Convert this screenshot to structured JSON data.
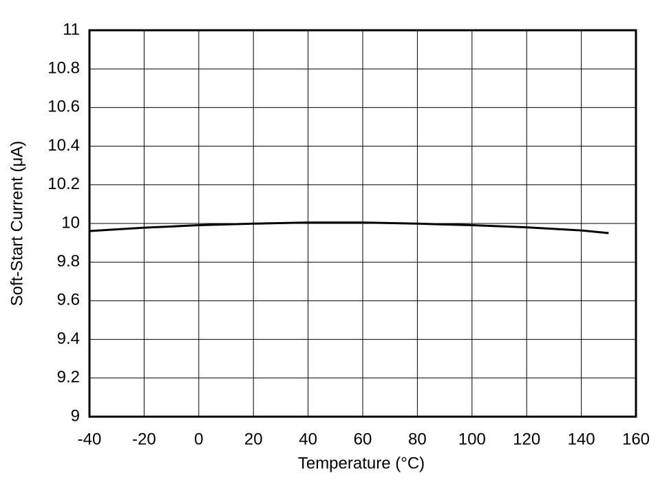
{
  "chart_data": {
    "type": "line",
    "x_label": "Temperature (°C)",
    "y_label": "Soft-Start Current (μA)",
    "x": [
      -40,
      -20,
      0,
      20,
      40,
      60,
      80,
      100,
      120,
      140,
      150
    ],
    "series": [
      {
        "name": "Soft-Start Current",
        "color": "#000000",
        "values": [
          9.961,
          9.978,
          9.991,
          9.999,
          10.005,
          10.005,
          9.999,
          9.991,
          9.98,
          9.964,
          9.95
        ]
      }
    ],
    "xlim": [
      -40,
      160
    ],
    "xticks": [
      -40,
      -20,
      0,
      20,
      40,
      60,
      80,
      100,
      120,
      140,
      160
    ],
    "ylim": [
      9,
      11
    ],
    "yticks": [
      9,
      9.2,
      9.4,
      9.6,
      9.8,
      10,
      10.2,
      10.4,
      10.6,
      10.8,
      11
    ],
    "grid": true
  }
}
